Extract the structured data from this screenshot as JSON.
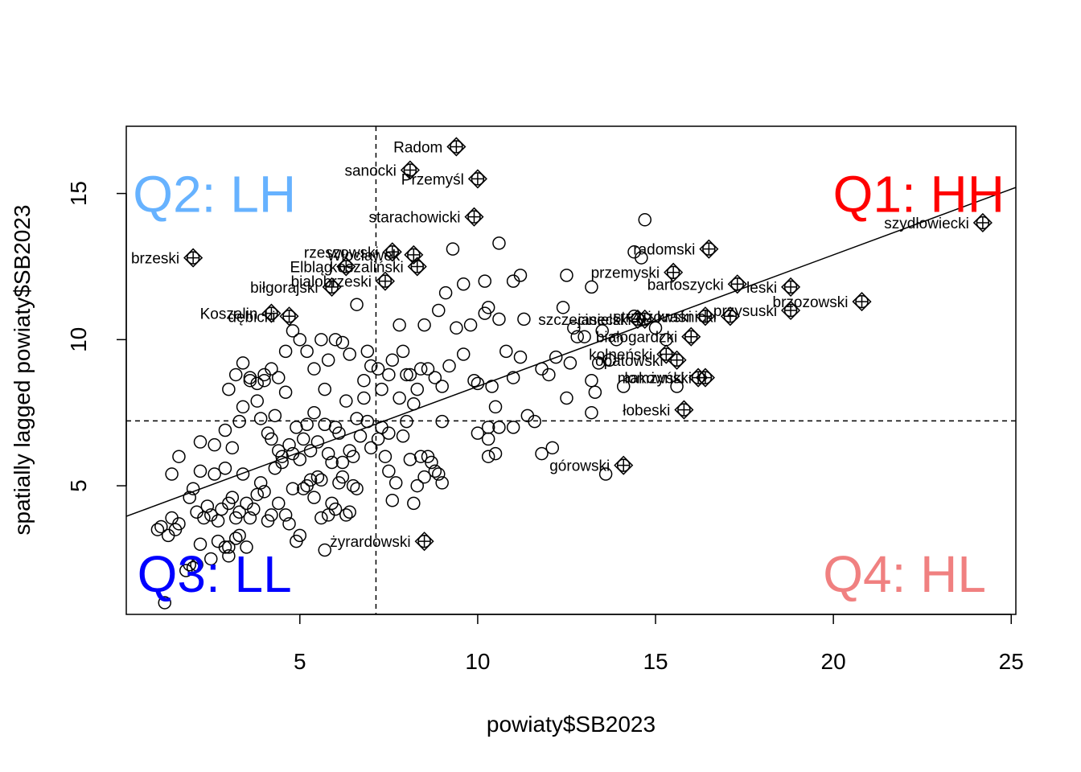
{
  "chart_data": {
    "type": "scatter",
    "title": "",
    "xlabel": "powiaty$SB2023",
    "ylabel": "spatially lagged powiaty$SB2023",
    "xlim": [
      0.12,
      25.13
    ],
    "ylim": [
      0.6,
      17.3
    ],
    "x_ticks": [
      5,
      10,
      15,
      20,
      25
    ],
    "y_ticks": [
      5,
      10,
      15
    ],
    "grid": false,
    "legend": "none",
    "reference_lines": {
      "vline_x": 7.14,
      "hline_y": 7.22
    },
    "regression_line": {
      "intercept": 3.9,
      "slope": 0.45
    },
    "quadrant_labels": [
      {
        "id": "q1",
        "text": "Q1: HH",
        "color": "#ff0000",
        "x": 22.4,
        "y": 15.0
      },
      {
        "id": "q2",
        "text": "Q2: LH",
        "color": "#66b2ff",
        "x": 2.6,
        "y": 15.0
      },
      {
        "id": "q3",
        "text": "Q3: LL",
        "color": "#0000ff",
        "x": 2.6,
        "y": 2.0
      },
      {
        "id": "q4",
        "text": "Q4: HL",
        "color": "#f08080",
        "x": 22.0,
        "y": 2.0
      }
    ],
    "influential": [
      {
        "label": "Radom",
        "x": 9.4,
        "y": 16.6
      },
      {
        "label": "sanocki",
        "x": 8.1,
        "y": 15.8
      },
      {
        "label": "Przemyśl",
        "x": 10.0,
        "y": 15.5
      },
      {
        "label": "starachowicki",
        "x": 9.9,
        "y": 14.2
      },
      {
        "label": "szydłowiecki",
        "x": 24.2,
        "y": 14.0
      },
      {
        "label": "radomski",
        "x": 16.5,
        "y": 13.1
      },
      {
        "label": "brzeski",
        "x": 2.0,
        "y": 12.8
      },
      {
        "label": "rzeszowski",
        "x": 7.6,
        "y": 13.0
      },
      {
        "label": "Włocławek",
        "x": 8.2,
        "y": 12.9
      },
      {
        "label": "Elbląg",
        "x": 6.3,
        "y": 12.5
      },
      {
        "label": "koszaliński",
        "x": 8.3,
        "y": 12.5
      },
      {
        "label": "przemyski",
        "x": 15.5,
        "y": 12.3
      },
      {
        "label": "bialobrzeski",
        "x": 7.4,
        "y": 12.0
      },
      {
        "label": "biłgorajski",
        "x": 5.9,
        "y": 11.8
      },
      {
        "label": "bartoszycki",
        "x": 17.3,
        "y": 11.9
      },
      {
        "label": "leski",
        "x": 18.8,
        "y": 11.8
      },
      {
        "label": "brzozowski",
        "x": 20.8,
        "y": 11.3
      },
      {
        "label": "przysuski",
        "x": 18.8,
        "y": 11.0
      },
      {
        "label": "Koszalin",
        "x": 4.2,
        "y": 10.9
      },
      {
        "label": "dębicki",
        "x": 4.7,
        "y": 10.8
      },
      {
        "label": "strzyżowski",
        "x": 16.4,
        "y": 10.8
      },
      {
        "label": "kraśnicki",
        "x": 17.1,
        "y": 10.8
      },
      {
        "label": "szczecinecki",
        "x": 14.5,
        "y": 10.7
      },
      {
        "label": "jasielski",
        "x": 14.7,
        "y": 10.7
      },
      {
        "label": "białogardzki",
        "x": 16.0,
        "y": 10.1
      },
      {
        "label": "kolneński",
        "x": 15.3,
        "y": 9.5
      },
      {
        "label": "opatowski",
        "x": 15.6,
        "y": 9.3
      },
      {
        "label": "makowski",
        "x": 16.2,
        "y": 8.7
      },
      {
        "label": "łomżyński",
        "x": 16.4,
        "y": 8.7
      },
      {
        "label": "łobeski",
        "x": 15.8,
        "y": 7.6
      },
      {
        "label": "górowski",
        "x": 14.1,
        "y": 5.7
      },
      {
        "label": "żyrardowski",
        "x": 8.5,
        "y": 3.1
      }
    ],
    "points": [
      [
        1.2,
        1.0
      ],
      [
        1.0,
        3.5
      ],
      [
        1.1,
        3.6
      ],
      [
        1.3,
        3.3
      ],
      [
        1.4,
        3.9
      ],
      [
        1.5,
        3.5
      ],
      [
        1.6,
        3.7
      ],
      [
        1.8,
        2.1
      ],
      [
        1.9,
        2.3
      ],
      [
        2.0,
        2.2
      ],
      [
        2.1,
        2.3
      ],
      [
        2.2,
        3.0
      ],
      [
        2.5,
        2.5
      ],
      [
        2.7,
        3.1
      ],
      [
        2.9,
        2.9
      ],
      [
        3.0,
        2.9
      ],
      [
        3.2,
        3.2
      ],
      [
        3.5,
        2.9
      ],
      [
        3.0,
        2.6
      ],
      [
        3.3,
        3.3
      ],
      [
        1.4,
        5.4
      ],
      [
        1.6,
        6.0
      ],
      [
        1.9,
        4.6
      ],
      [
        2.0,
        4.9
      ],
      [
        2.1,
        4.1
      ],
      [
        2.2,
        5.5
      ],
      [
        2.3,
        3.9
      ],
      [
        2.4,
        4.3
      ],
      [
        2.5,
        4.0
      ],
      [
        2.6,
        5.4
      ],
      [
        2.7,
        3.8
      ],
      [
        2.8,
        4.2
      ],
      [
        2.9,
        5.6
      ],
      [
        3.0,
        4.4
      ],
      [
        3.1,
        4.6
      ],
      [
        3.2,
        3.9
      ],
      [
        3.3,
        4.1
      ],
      [
        3.4,
        5.4
      ],
      [
        3.5,
        4.4
      ],
      [
        3.6,
        3.9
      ],
      [
        3.7,
        4.2
      ],
      [
        3.8,
        4.7
      ],
      [
        3.9,
        5.1
      ],
      [
        4.0,
        4.8
      ],
      [
        4.1,
        3.8
      ],
      [
        4.2,
        4.0
      ],
      [
        4.3,
        5.6
      ],
      [
        4.4,
        4.4
      ],
      [
        4.5,
        5.8
      ],
      [
        4.6,
        4.0
      ],
      [
        4.7,
        3.7
      ],
      [
        4.8,
        4.9
      ],
      [
        4.9,
        3.1
      ],
      [
        5.0,
        3.3
      ],
      [
        5.1,
        4.9
      ],
      [
        5.2,
        5.0
      ],
      [
        5.3,
        5.2
      ],
      [
        5.4,
        4.6
      ],
      [
        5.5,
        5.3
      ],
      [
        5.6,
        3.9
      ],
      [
        5.7,
        2.8
      ],
      [
        5.8,
        4.0
      ],
      [
        5.9,
        4.4
      ],
      [
        6.0,
        4.2
      ],
      [
        6.1,
        5.1
      ],
      [
        6.2,
        5.3
      ],
      [
        6.3,
        4.0
      ],
      [
        6.4,
        4.1
      ],
      [
        6.5,
        5.0
      ],
      [
        6.6,
        4.9
      ],
      [
        2.2,
        6.5
      ],
      [
        2.6,
        6.4
      ],
      [
        2.9,
        6.9
      ],
      [
        3.1,
        6.3
      ],
      [
        3.3,
        7.2
      ],
      [
        3.4,
        7.7
      ],
      [
        3.6,
        8.6
      ],
      [
        3.8,
        7.9
      ],
      [
        3.9,
        7.3
      ],
      [
        4.0,
        8.6
      ],
      [
        4.1,
        6.8
      ],
      [
        4.2,
        6.6
      ],
      [
        4.3,
        7.4
      ],
      [
        4.4,
        6.2
      ],
      [
        4.5,
        6.0
      ],
      [
        4.6,
        8.2
      ],
      [
        4.7,
        6.4
      ],
      [
        4.8,
        6.1
      ],
      [
        4.9,
        7.0
      ],
      [
        5.0,
        5.9
      ],
      [
        5.1,
        6.6
      ],
      [
        5.2,
        7.1
      ],
      [
        5.3,
        6.2
      ],
      [
        5.4,
        7.5
      ],
      [
        5.5,
        6.5
      ],
      [
        5.6,
        5.2
      ],
      [
        5.7,
        7.1
      ],
      [
        5.8,
        6.1
      ],
      [
        5.9,
        5.8
      ],
      [
        6.0,
        7.0
      ],
      [
        6.1,
        6.8
      ],
      [
        6.2,
        5.8
      ],
      [
        6.3,
        7.9
      ],
      [
        6.4,
        6.2
      ],
      [
        6.5,
        6.0
      ],
      [
        6.6,
        7.3
      ],
      [
        6.7,
        6.7
      ],
      [
        6.8,
        8.0
      ],
      [
        6.9,
        7.2
      ],
      [
        7.0,
        6.3
      ],
      [
        3.0,
        8.3
      ],
      [
        3.2,
        8.8
      ],
      [
        3.4,
        9.2
      ],
      [
        3.6,
        8.7
      ],
      [
        3.8,
        8.5
      ],
      [
        4.0,
        8.8
      ],
      [
        4.2,
        9.0
      ],
      [
        4.4,
        8.7
      ],
      [
        4.6,
        9.6
      ],
      [
        4.8,
        10.3
      ],
      [
        5.0,
        10.0
      ],
      [
        5.2,
        9.6
      ],
      [
        5.4,
        9.0
      ],
      [
        5.6,
        10.0
      ],
      [
        5.7,
        8.3
      ],
      [
        5.8,
        9.3
      ],
      [
        6.0,
        10.0
      ],
      [
        6.2,
        9.9
      ],
      [
        6.4,
        9.5
      ],
      [
        6.6,
        11.2
      ],
      [
        6.8,
        8.6
      ],
      [
        7.0,
        9.1
      ],
      [
        7.2,
        9.0
      ],
      [
        7.3,
        8.3
      ],
      [
        7.5,
        8.8
      ],
      [
        7.6,
        9.3
      ],
      [
        7.8,
        8.0
      ],
      [
        7.8,
        10.5
      ],
      [
        7.9,
        9.6
      ],
      [
        8.0,
        8.8
      ],
      [
        7.2,
        6.6
      ],
      [
        7.3,
        7.0
      ],
      [
        7.4,
        6.0
      ],
      [
        7.5,
        5.5
      ],
      [
        7.5,
        6.8
      ],
      [
        7.6,
        4.5
      ],
      [
        7.7,
        5.1
      ],
      [
        7.9,
        6.7
      ],
      [
        8.0,
        7.2
      ],
      [
        8.1,
        5.9
      ],
      [
        8.2,
        4.4
      ],
      [
        8.3,
        5.0
      ],
      [
        8.4,
        6.0
      ],
      [
        8.5,
        5.3
      ],
      [
        8.6,
        6.0
      ],
      [
        8.7,
        5.8
      ],
      [
        8.8,
        5.5
      ],
      [
        8.9,
        5.4
      ],
      [
        9.0,
        5.1
      ],
      [
        9.0,
        7.2
      ],
      [
        8.1,
        8.8
      ],
      [
        8.2,
        7.8
      ],
      [
        8.3,
        8.3
      ],
      [
        8.4,
        9.0
      ],
      [
        8.5,
        10.5
      ],
      [
        8.6,
        9.0
      ],
      [
        8.8,
        8.7
      ],
      [
        8.9,
        11.0
      ],
      [
        9.0,
        8.4
      ],
      [
        9.1,
        11.6
      ],
      [
        9.2,
        9.1
      ],
      [
        9.4,
        10.4
      ],
      [
        9.6,
        9.5
      ],
      [
        9.6,
        11.9
      ],
      [
        9.9,
        8.6
      ],
      [
        10.0,
        8.5
      ],
      [
        10.2,
        12.0
      ],
      [
        10.3,
        11.1
      ],
      [
        10.4,
        8.4
      ],
      [
        10.5,
        7.7
      ],
      [
        10.6,
        10.7
      ],
      [
        10.6,
        13.3
      ],
      [
        10.8,
        9.6
      ],
      [
        11.0,
        12.0
      ],
      [
        11.0,
        7.0
      ],
      [
        11.2,
        9.4
      ],
      [
        11.4,
        7.4
      ],
      [
        11.6,
        7.2
      ],
      [
        11.8,
        9.0
      ],
      [
        11.8,
        6.1
      ],
      [
        10.3,
        6.6
      ],
      [
        10.3,
        7.0
      ],
      [
        10.3,
        6.0
      ],
      [
        10.5,
        6.1
      ],
      [
        10.6,
        7.0
      ],
      [
        10.0,
        6.8
      ],
      [
        12.0,
        8.8
      ],
      [
        12.2,
        9.4
      ],
      [
        12.5,
        12.2
      ],
      [
        12.5,
        8.0
      ],
      [
        12.6,
        9.2
      ],
      [
        12.7,
        10.4
      ],
      [
        12.8,
        10.1
      ],
      [
        13.0,
        10.1
      ],
      [
        13.2,
        11.8
      ],
      [
        13.2,
        8.6
      ],
      [
        13.3,
        8.2
      ],
      [
        13.4,
        9.2
      ],
      [
        13.5,
        10.3
      ],
      [
        13.6,
        5.4
      ],
      [
        13.7,
        9.3
      ],
      [
        13.9,
        10.0
      ],
      [
        14.1,
        8.4
      ],
      [
        14.4,
        10.8
      ],
      [
        14.6,
        12.8
      ],
      [
        15.0,
        10.4
      ],
      [
        15.3,
        10.0
      ],
      [
        15.6,
        8.4
      ],
      [
        14.4,
        13.0
      ],
      [
        14.7,
        14.1
      ],
      [
        12.1,
        6.3
      ],
      [
        13.2,
        7.5
      ],
      [
        11.0,
        8.7
      ],
      [
        9.8,
        10.5
      ],
      [
        10.2,
        10.9
      ],
      [
        11.3,
        10.7
      ],
      [
        12.4,
        11.1
      ],
      [
        9.3,
        13.1
      ],
      [
        11.2,
        12.2
      ],
      [
        6.9,
        9.6
      ]
    ]
  }
}
